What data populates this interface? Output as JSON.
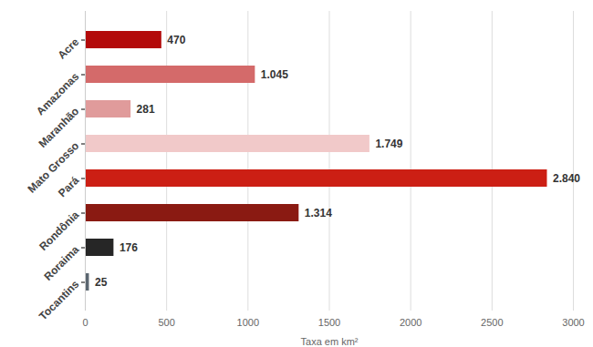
{
  "chart_data": {
    "type": "bar",
    "orientation": "horizontal",
    "categories": [
      "Acre",
      "Amazonas",
      "Maranhão",
      "Mato Grosso",
      "Pará",
      "Rondônia",
      "Roraima",
      "Tocantins"
    ],
    "values": [
      470,
      1045,
      281,
      1749,
      2840,
      1314,
      176,
      25
    ],
    "value_labels": [
      "470",
      "1.045",
      "281",
      "1.749",
      "2.840",
      "1.314",
      "176",
      "25"
    ],
    "colors": [
      "#b30a0a",
      "#d46a6a",
      "#e09b9b",
      "#f1c9c9",
      "#cc1f14",
      "#8a1a12",
      "#262626",
      "#5b6670"
    ],
    "xlabel": "Taxa em km²",
    "xlim": [
      0,
      3000
    ],
    "xticks": [
      0,
      500,
      1000,
      1500,
      2000,
      2500,
      3000
    ],
    "grid": true,
    "data_labels": true
  }
}
